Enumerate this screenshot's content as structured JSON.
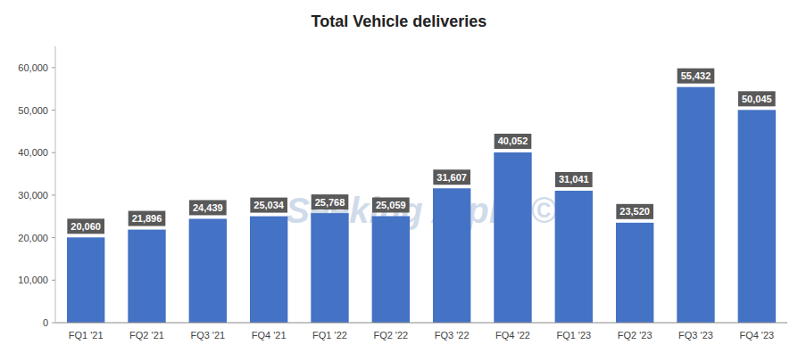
{
  "chart_data": {
    "type": "bar",
    "title": "Total Vehicle deliveries",
    "categories": [
      "FQ1 '21",
      "FQ2 '21",
      "FQ3 '21",
      "FQ4 '21",
      "FQ1 '22",
      "FQ2 '22",
      "FQ3 '22",
      "FQ4 '22",
      "FQ1 '23",
      "FQ2 '23",
      "FQ3 '23",
      "FQ4 '23"
    ],
    "values": [
      20060,
      21896,
      24439,
      25034,
      25768,
      25059,
      31607,
      40052,
      31041,
      23520,
      55432,
      50045
    ],
    "value_labels": [
      "20,060",
      "21,896",
      "24,439",
      "25,034",
      "25,768",
      "25,059",
      "31,607",
      "40,052",
      "31,041",
      "23,520",
      "55,432",
      "50,045"
    ],
    "color": "#4472C4",
    "ylim": [
      0,
      65000
    ],
    "yticks": [
      0,
      {
        "value": 10000,
        "label": "10,000"
      },
      {
        "value": 20000,
        "label": "20,000"
      },
      {
        "value": 30000,
        "label": "30,000"
      },
      {
        "value": 40000,
        "label": "40,000"
      },
      {
        "value": 50000,
        "label": "50,000"
      },
      {
        "value": 60000,
        "label": "60,000"
      }
    ],
    "grid": false,
    "data_labels": true,
    "annotations": [
      "Seeking Alpha©"
    ]
  }
}
